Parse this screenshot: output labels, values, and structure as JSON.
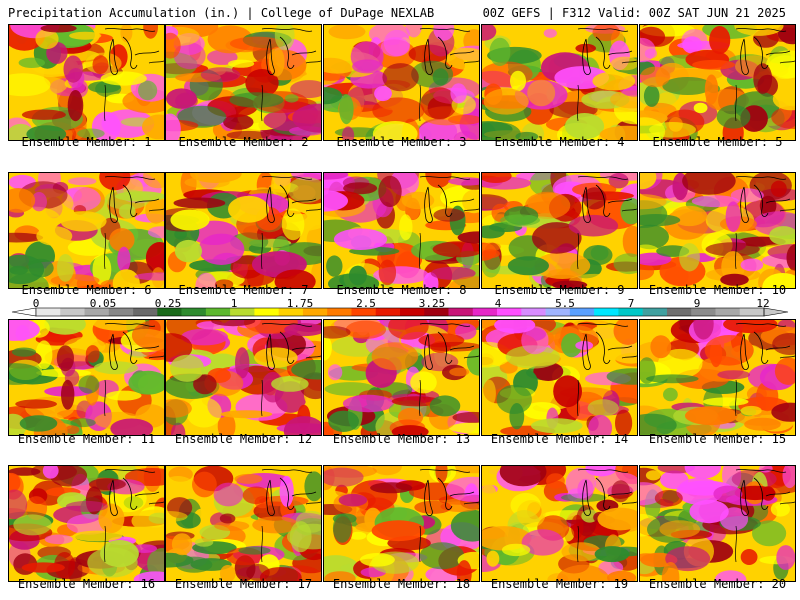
{
  "header": {
    "left": "Precipitation Accumulation (in.) | College of DuPage NEXLAB",
    "right": "00Z GEFS | F312 Valid: 00Z SAT JUN 21 2025"
  },
  "legend": {
    "ticks": [
      "0",
      "0.05",
      "0.25",
      "1",
      "1.75",
      "2.5",
      "3.25",
      "4",
      "5.5",
      "7",
      "9",
      "12"
    ],
    "colors": [
      "#e8e8e8",
      "#c8c8c8",
      "#a8a8a8",
      "#888888",
      "#6a6a6a",
      "#1a6a1a",
      "#2e8b2e",
      "#5cb82e",
      "#b8dc30",
      "#ffff00",
      "#ffd200",
      "#ffa800",
      "#ff7a00",
      "#ff4600",
      "#e81a00",
      "#c80000",
      "#a00010",
      "#c81478",
      "#e628c8",
      "#ff50ff",
      "#d88cff",
      "#a0b4ff",
      "#5aa0ff",
      "#00e6ff",
      "#00c8c8",
      "#40a0a0",
      "#707070",
      "#8c8c8c",
      "#a8a8a8",
      "#c8c8c8"
    ]
  },
  "members": [
    {
      "label": "Ensemble Member: 1"
    },
    {
      "label": "Ensemble Member: 2"
    },
    {
      "label": "Ensemble Member: 3"
    },
    {
      "label": "Ensemble Member: 4"
    },
    {
      "label": "Ensemble Member: 5"
    },
    {
      "label": "Ensemble Member: 6"
    },
    {
      "label": "Ensemble Member: 7"
    },
    {
      "label": "Ensemble Member: 8"
    },
    {
      "label": "Ensemble Member: 9"
    },
    {
      "label": "Ensemble Member: 10"
    },
    {
      "label": "Ensemble Member: 11"
    },
    {
      "label": "Ensemble Member: 12"
    },
    {
      "label": "Ensemble Member: 13"
    },
    {
      "label": "Ensemble Member: 14"
    },
    {
      "label": "Ensemble Member: 15"
    },
    {
      "label": "Ensemble Member: 16"
    },
    {
      "label": "Ensemble Member: 17"
    },
    {
      "label": "Ensemble Member: 18"
    },
    {
      "label": "Ensemble Member: 19"
    },
    {
      "label": "Ensemble Member: 20"
    }
  ]
}
